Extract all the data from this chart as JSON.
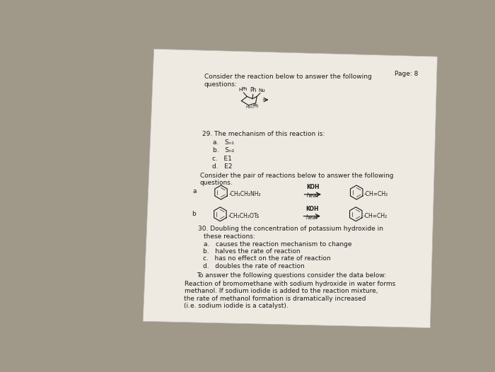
{
  "bg_color": "#a09888",
  "paper_color": "#eeeae2",
  "page_label": "Page: 8",
  "title_line1": "Consider the reaction below to answer the following",
  "title_line2": "questions:",
  "q29_text": "29. The mechanism of this reaction is:",
  "q29_a": "a.   Sₙ₁",
  "q29_b": "b.   Sₙ₂",
  "q29_c": "c.   E1",
  "q29_d": "d.   E2",
  "pair_line1": "Consider the pair of reactions below to answer the following",
  "pair_line2": "questions.",
  "rxn_a_label": "a",
  "rxn_b_label": "b",
  "rxn_a_left": "-CH₂CH₂NH₂",
  "rxn_a_right": "-CH=CH₂",
  "rxn_b_left": "-CH₂CH₂OTs",
  "rxn_b_right": "-CH=CH₂",
  "koh": "KOH",
  "heat": "heat",
  "q30_line1": "30. Doubling the concentration of potassium hydroxide in",
  "q30_line2": "these reactions:",
  "q30_a": "a.   causes the reaction mechanism to change",
  "q30_b": "b.   halves the rate of reaction",
  "q30_c": "c.   has no effect on the rate of reaction",
  "q30_d": "d.   doubles the rate of reaction",
  "data_intro": "To answer the following questions consider the data below:",
  "data_p1": "Reaction of bromomethane with sodium hydroxide in water forms",
  "data_p2": "methanol. If sodium iodide is added to the reaction mixture,",
  "data_p3": "the rate of methanol formation is dramatically increased",
  "data_p4": "(i.e. sodium iodide is a catalyst).",
  "text_color": "#1a1a1a",
  "faint_color": "#444444"
}
